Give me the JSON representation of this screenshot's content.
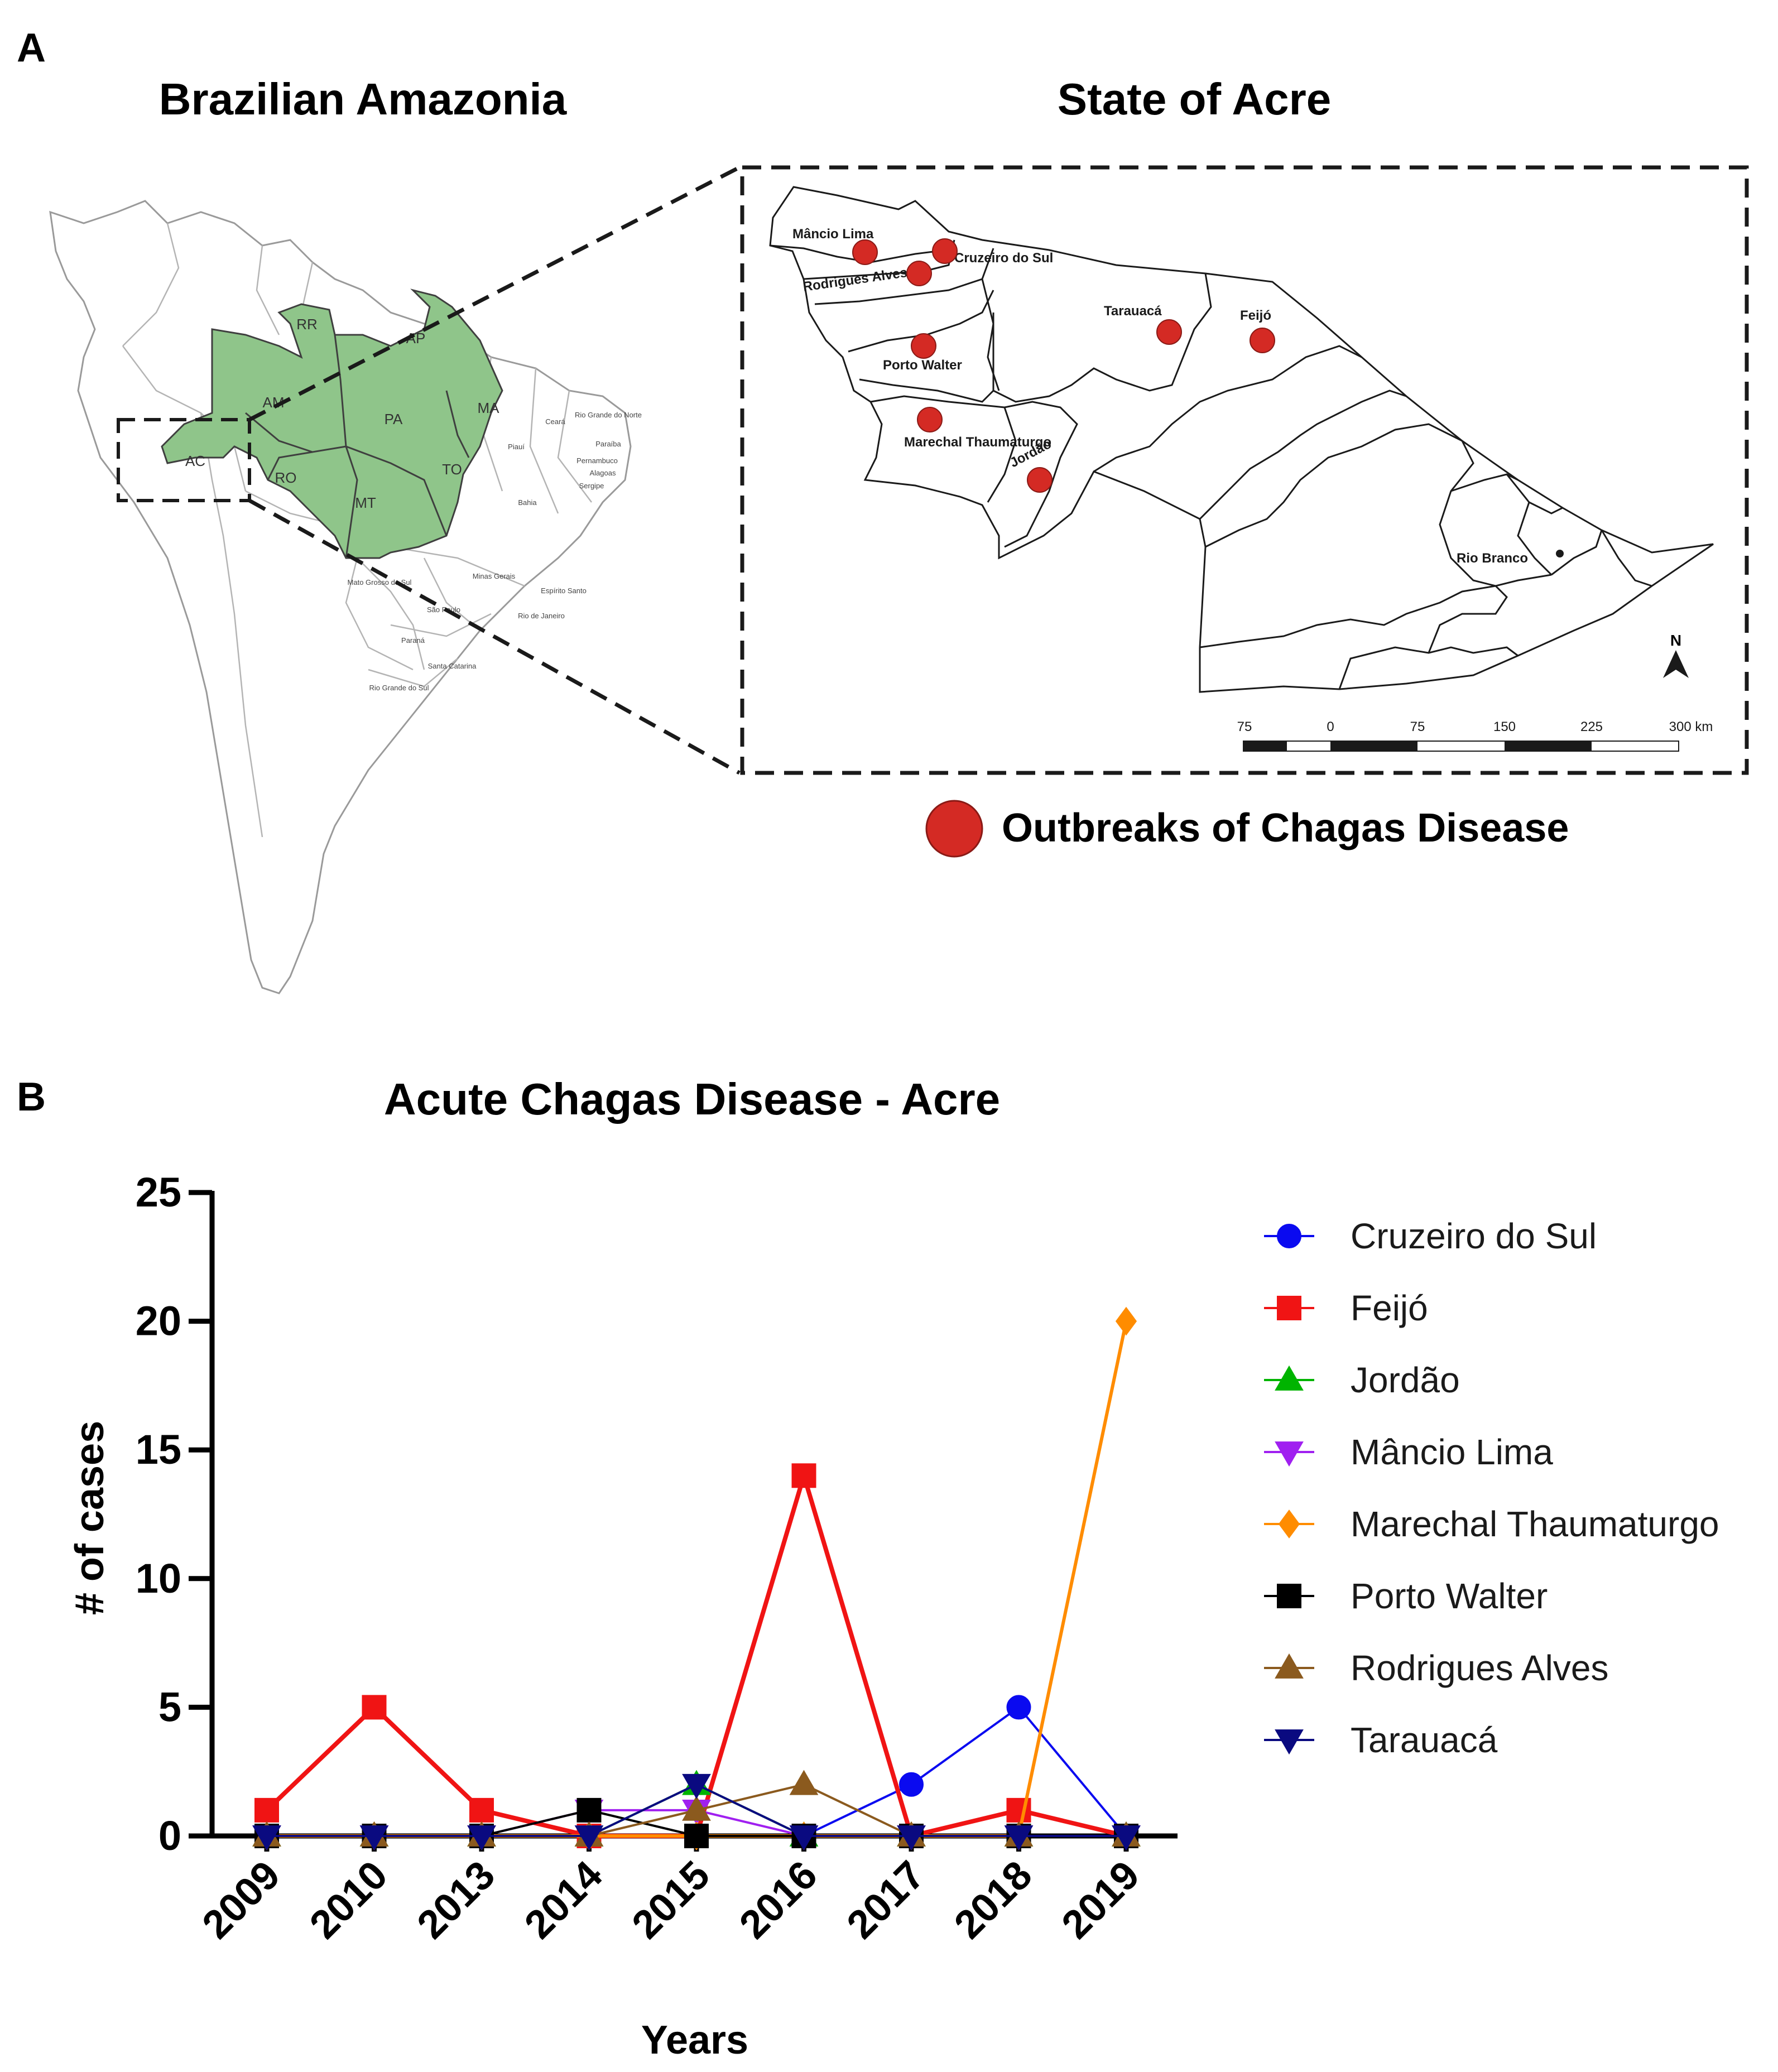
{
  "panel_a": {
    "letter": "A",
    "left_title": "Brazilian Amazonia",
    "right_title": "State of Acre",
    "state_labels": [
      "RR",
      "AP",
      "AM",
      "PA",
      "MA",
      "AC",
      "RO",
      "TO",
      "MT"
    ],
    "other_state_labels": [
      "Ceará",
      "Rio Grande do Norte",
      "Paraíba",
      "Pernambuco",
      "Alagoas",
      "Sergipe",
      "Piauí",
      "Bahia",
      "Minas Gerais",
      "Espírito Santo",
      "Rio de Janeiro",
      "São Paulo",
      "Mato Grosso do Sul",
      "Paraná",
      "Santa Catarina",
      "Rio Grande do Sul"
    ],
    "outbreak_sites": [
      "Mâncio Lima",
      "Cruzeiro do Sul",
      "Rodrigues Alves",
      "Tarauacá",
      "Feijó",
      "Porto Walter",
      "Marechal Thaumaturgo",
      "Jordão"
    ],
    "capital": "Rio Branco",
    "north": "N",
    "scale_labels": [
      "75",
      "0",
      "75",
      "150",
      "225",
      "300 km"
    ],
    "legend_label": "Outbreaks of Chagas Disease",
    "colors": {
      "amazonia": "#8fc58a",
      "outbreak": "#d42a24"
    }
  },
  "panel_b": {
    "letter": "B"
  },
  "chart_data": {
    "type": "line",
    "title": "Acute Chagas Disease - Acre",
    "xlabel": "Years",
    "ylabel": "# of cases",
    "categories": [
      "2009",
      "2010",
      "2013",
      "2014",
      "2015",
      "2016",
      "2017",
      "2018",
      "2019"
    ],
    "ylim": [
      0,
      25
    ],
    "yticks": [
      0,
      5,
      10,
      15,
      20,
      25
    ],
    "legend_position": "right",
    "series": [
      {
        "name": "Cruzeiro do Sul",
        "marker": "circle",
        "color": "#0a0af0",
        "values": [
          0,
          0,
          0,
          0,
          0,
          0,
          2,
          5,
          0
        ]
      },
      {
        "name": "Feijó",
        "marker": "square",
        "color": "#f01414",
        "values": [
          1,
          5,
          1,
          0,
          0,
          14,
          0,
          1,
          0
        ]
      },
      {
        "name": "Jordão",
        "marker": "triangle-up",
        "color": "#00b400",
        "values": [
          0,
          0,
          0,
          0,
          2,
          0,
          0,
          0,
          0
        ]
      },
      {
        "name": "Mâncio Lima",
        "marker": "triangle-down",
        "color": "#a020f0",
        "values": [
          0,
          0,
          0,
          1,
          1,
          0,
          0,
          0,
          0
        ]
      },
      {
        "name": "Marechal Thaumaturgo",
        "marker": "diamond",
        "color": "#ff8c00",
        "values": [
          0,
          0,
          0,
          0,
          0,
          0,
          0,
          0,
          20
        ]
      },
      {
        "name": "Porto Walter",
        "marker": "square",
        "color": "#000000",
        "values": [
          0,
          0,
          0,
          1,
          0,
          0,
          0,
          0,
          0
        ]
      },
      {
        "name": "Rodrigues Alves",
        "marker": "triangle-up",
        "color": "#8b5a1e",
        "values": [
          0,
          0,
          0,
          0,
          1,
          2,
          0,
          0,
          0
        ]
      },
      {
        "name": "Tarauacá",
        "marker": "triangle-down",
        "color": "#0a0a80",
        "values": [
          0,
          0,
          0,
          0,
          2,
          0,
          0,
          0,
          0
        ]
      }
    ]
  }
}
